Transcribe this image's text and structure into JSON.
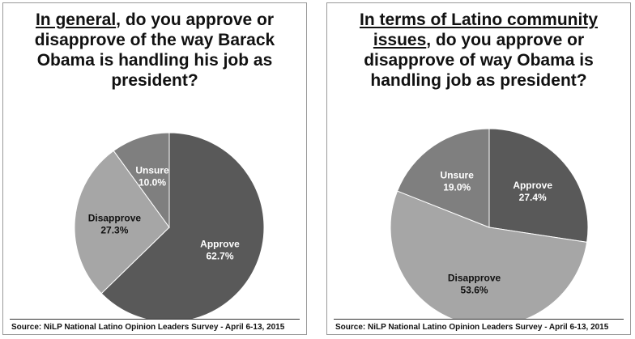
{
  "chart_data": [
    {
      "type": "pie",
      "title_underlined": "In general",
      "title_rest": ", do you approve or disapprove of the way Barack Obama is handling his job as president?",
      "slices": [
        {
          "label": "Approve",
          "value": 62.7,
          "display": "62.7%",
          "color": "#595959",
          "text_color": "#ffffff"
        },
        {
          "label": "Disapprove",
          "value": 27.3,
          "display": "27.3%",
          "color": "#a6a6a6",
          "text_color": "#111111"
        },
        {
          "label": "Unsure",
          "value": 10.0,
          "display": "10.0%",
          "color": "#7f7f7f",
          "text_color": "#ffffff"
        }
      ],
      "source": "Source: NiLP National Latino Opinion Leaders Survey - April 6-13, 2015"
    },
    {
      "type": "pie",
      "title_underlined": "In terms of Latino community issues",
      "title_rest": ", do you approve or disapprove of way Obama is handling job as president?",
      "slices": [
        {
          "label": "Approve",
          "value": 27.4,
          "display": "27.4%",
          "color": "#595959",
          "text_color": "#ffffff"
        },
        {
          "label": "Disapprove",
          "value": 53.6,
          "display": "53.6%",
          "color": "#a6a6a6",
          "text_color": "#111111"
        },
        {
          "label": "Unsure",
          "value": 19.0,
          "display": "19.0%",
          "color": "#7f7f7f",
          "text_color": "#ffffff"
        }
      ],
      "source": "Source: NiLP National Latino Opinion Leaders Survey - April 6-13, 2015"
    }
  ]
}
